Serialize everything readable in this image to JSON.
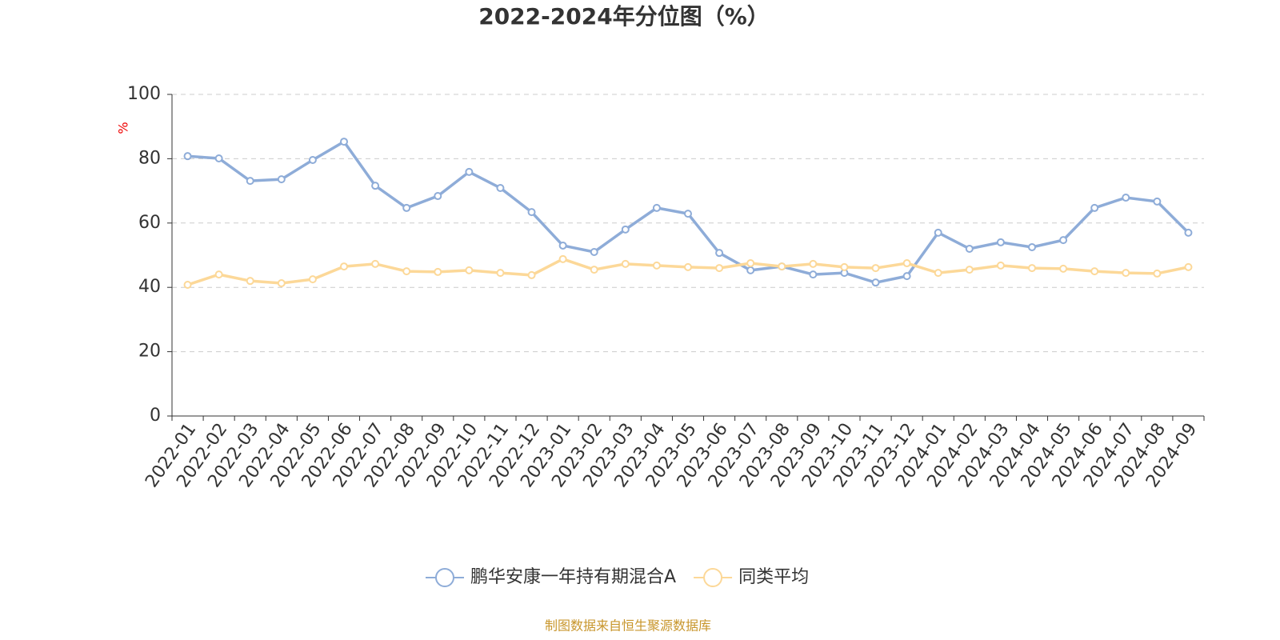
{
  "chart_data": {
    "type": "line",
    "title": "2022-2024年分位图（%）",
    "y_label": "%",
    "categories": [
      "2022-01",
      "2022-02",
      "2022-03",
      "2022-04",
      "2022-05",
      "2022-06",
      "2022-07",
      "2022-08",
      "2022-09",
      "2022-10",
      "2022-11",
      "2022-12",
      "2023-01",
      "2023-02",
      "2023-03",
      "2023-04",
      "2023-05",
      "2023-06",
      "2023-07",
      "2023-08",
      "2023-09",
      "2023-10",
      "2023-11",
      "2023-12",
      "2024-01",
      "2024-02",
      "2024-03",
      "2024-04",
      "2024-05",
      "2024-06",
      "2024-07",
      "2024-08",
      "2024-09"
    ],
    "series": [
      {
        "name": "鹏华安康一年持有期混合A",
        "color": "#8eacd8",
        "values": [
          80.8,
          80.1,
          73.1,
          73.6,
          79.6,
          85.3,
          71.6,
          64.7,
          68.4,
          75.9,
          70.9,
          63.4,
          53.0,
          51.0,
          58.0,
          64.7,
          62.9,
          50.7,
          45.3,
          46.5,
          44.0,
          44.5,
          41.5,
          43.5,
          57.0,
          52.0,
          54.0,
          52.5,
          54.7,
          64.7,
          67.9,
          66.7,
          57.0
        ]
      },
      {
        "name": "同类平均",
        "color": "#fcd898",
        "values": [
          40.8,
          44.0,
          42.0,
          41.3,
          42.5,
          46.5,
          47.3,
          45.0,
          44.8,
          45.3,
          44.5,
          43.8,
          48.8,
          45.5,
          47.3,
          46.8,
          46.3,
          46.0,
          47.5,
          46.5,
          47.3,
          46.3,
          46.0,
          47.5,
          44.5,
          45.5,
          46.8,
          46.0,
          45.8,
          45.0,
          44.5,
          44.3,
          46.3
        ]
      }
    ],
    "ylim": [
      0,
      100
    ],
    "yticks": [
      0,
      20,
      40,
      60,
      80,
      100
    ],
    "grid": true,
    "source": "制图数据来自恒生聚源数据库"
  }
}
